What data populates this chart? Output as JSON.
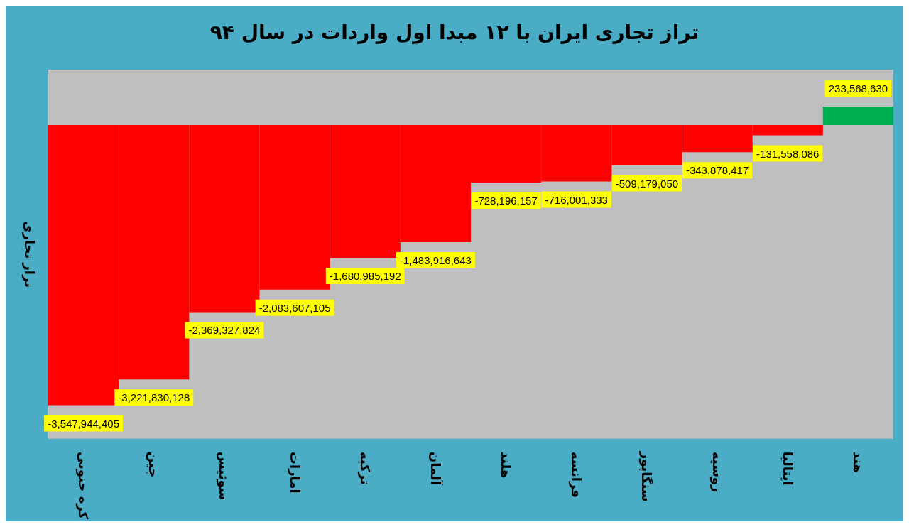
{
  "chart_data": {
    "type": "bar",
    "title": "تراز تجاری ایران با ۱۲ مبدا اول واردات در سال ۹۴",
    "ylabel": "تراز تجاری",
    "categories": [
      "کره جنوبی",
      "چین",
      "سوئیس",
      "امارات",
      "ترکیه",
      "آلمان",
      "هلند",
      "فرانسه",
      "سنگاپور",
      "روسیه",
      "ایتالیا",
      "هند"
    ],
    "values": [
      -3547944405,
      -3221830128,
      -2369327824,
      -2083607105,
      -1680985192,
      -1483916643,
      -728196157,
      -716001333,
      -509179050,
      -343878417,
      -131558086,
      233568630
    ],
    "colors": [
      "#ff0000",
      "#ff0000",
      "#ff0000",
      "#ff0000",
      "#ff0000",
      "#ff0000",
      "#ff0000",
      "#ff0000",
      "#ff0000",
      "#ff0000",
      "#ff0000",
      "#00b050"
    ],
    "value_labels": [
      "-3,547,944,405",
      "-3,221,830,128",
      "-2,369,327,824",
      "-2,083,607,105",
      "-1,680,985,192",
      "-1,483,916,643",
      "-728,196,157",
      "-716,001,333",
      "-509,179,050",
      "-343,878,417",
      "-131,558,086",
      "233,568,630"
    ],
    "grid": false
  }
}
